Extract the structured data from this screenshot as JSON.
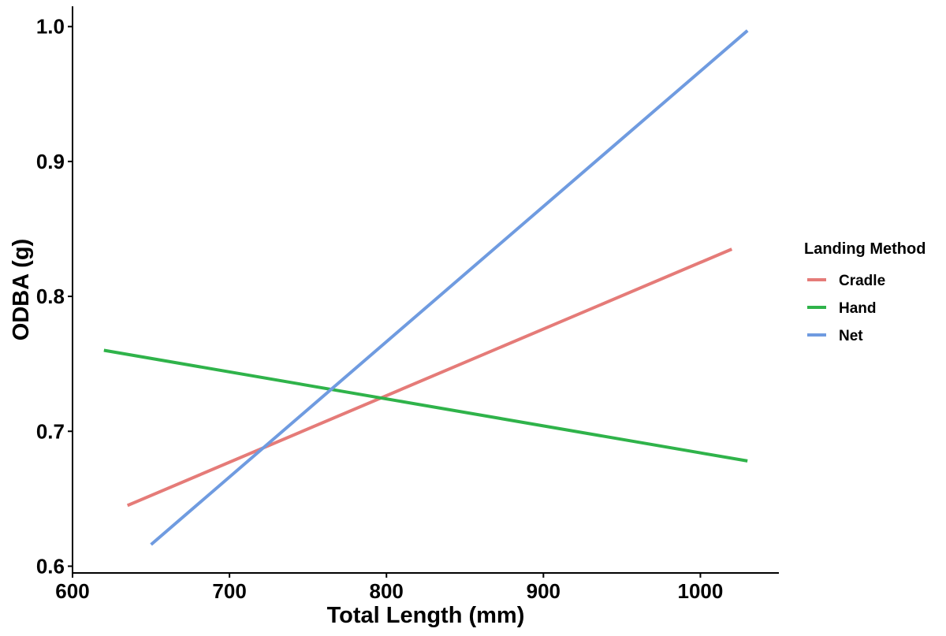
{
  "chart_data": {
    "type": "line",
    "title": "",
    "xlabel": "Total Length (mm)",
    "ylabel": "ODBA (g)",
    "xlim": [
      600,
      1050
    ],
    "ylim": [
      0.595,
      1.015
    ],
    "x_ticks": [
      600,
      700,
      800,
      900,
      1000
    ],
    "y_ticks": [
      0.6,
      0.7,
      0.8,
      0.9,
      1.0
    ],
    "x_tick_labels": [
      "600",
      "700",
      "800",
      "900",
      "1000"
    ],
    "y_tick_labels": [
      "0.6",
      "0.7",
      "0.8",
      "0.9",
      "1.0"
    ],
    "grid": false,
    "legend": {
      "title": "Landing Method",
      "position": "right"
    },
    "series": [
      {
        "name": "Cradle",
        "color": "#e57b78",
        "x": [
          635,
          1020
        ],
        "y": [
          0.645,
          0.835
        ]
      },
      {
        "name": "Hand",
        "color": "#2fb34a",
        "x": [
          620,
          1030
        ],
        "y": [
          0.76,
          0.678
        ]
      },
      {
        "name": "Net",
        "color": "#6f9be0",
        "x": [
          650,
          1030
        ],
        "y": [
          0.616,
          0.997
        ]
      }
    ]
  }
}
